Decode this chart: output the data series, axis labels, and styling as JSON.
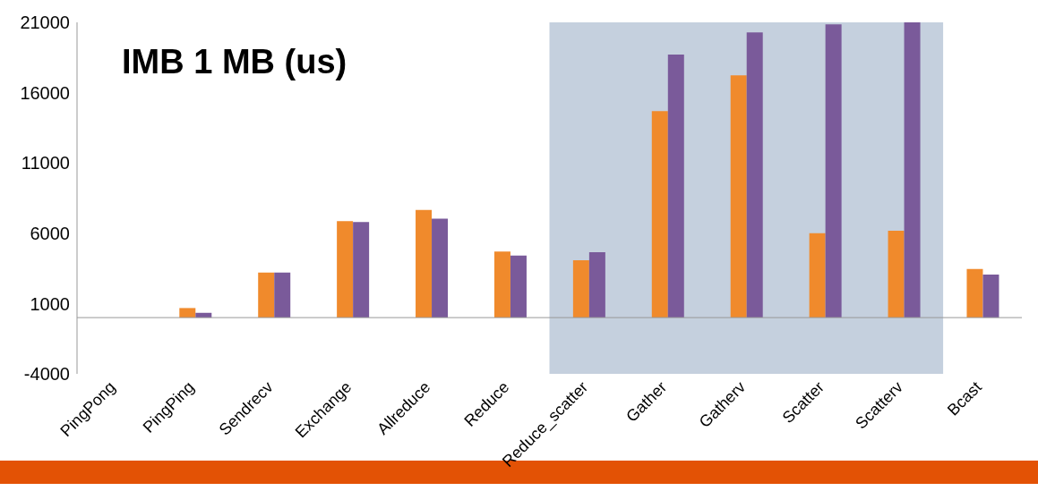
{
  "chart_data": {
    "type": "bar",
    "title": "IMB 1 MB (us)",
    "categories": [
      "PingPong",
      "PingPing",
      "Sendrecv",
      "Exchange",
      "Allreduce",
      "Reduce",
      "Reduce_scatter",
      "Gather",
      "Gatherv",
      "Scatter",
      "Scatterv",
      "Bcast"
    ],
    "series": [
      {
        "color": "#f08a2c",
        "values": [
          null,
          680,
          3200,
          6860,
          7650,
          4700,
          4080,
          14680,
          17230,
          6010,
          6180,
          3460
        ]
      },
      {
        "color": "#7a5a9a",
        "values": [
          null,
          340,
          3200,
          6800,
          7030,
          4420,
          4650,
          18710,
          20290,
          20860,
          21000,
          3060
        ]
      }
    ],
    "ylim": [
      -4000,
      21000
    ],
    "yticks": [
      -4000,
      1000,
      6000,
      11000,
      16000,
      21000
    ],
    "bands": [
      {
        "axis": "x",
        "from": "Reduce_scatter",
        "to": "Scatterv",
        "color": "#c5d0de"
      }
    ],
    "grid": false,
    "legend": false
  }
}
